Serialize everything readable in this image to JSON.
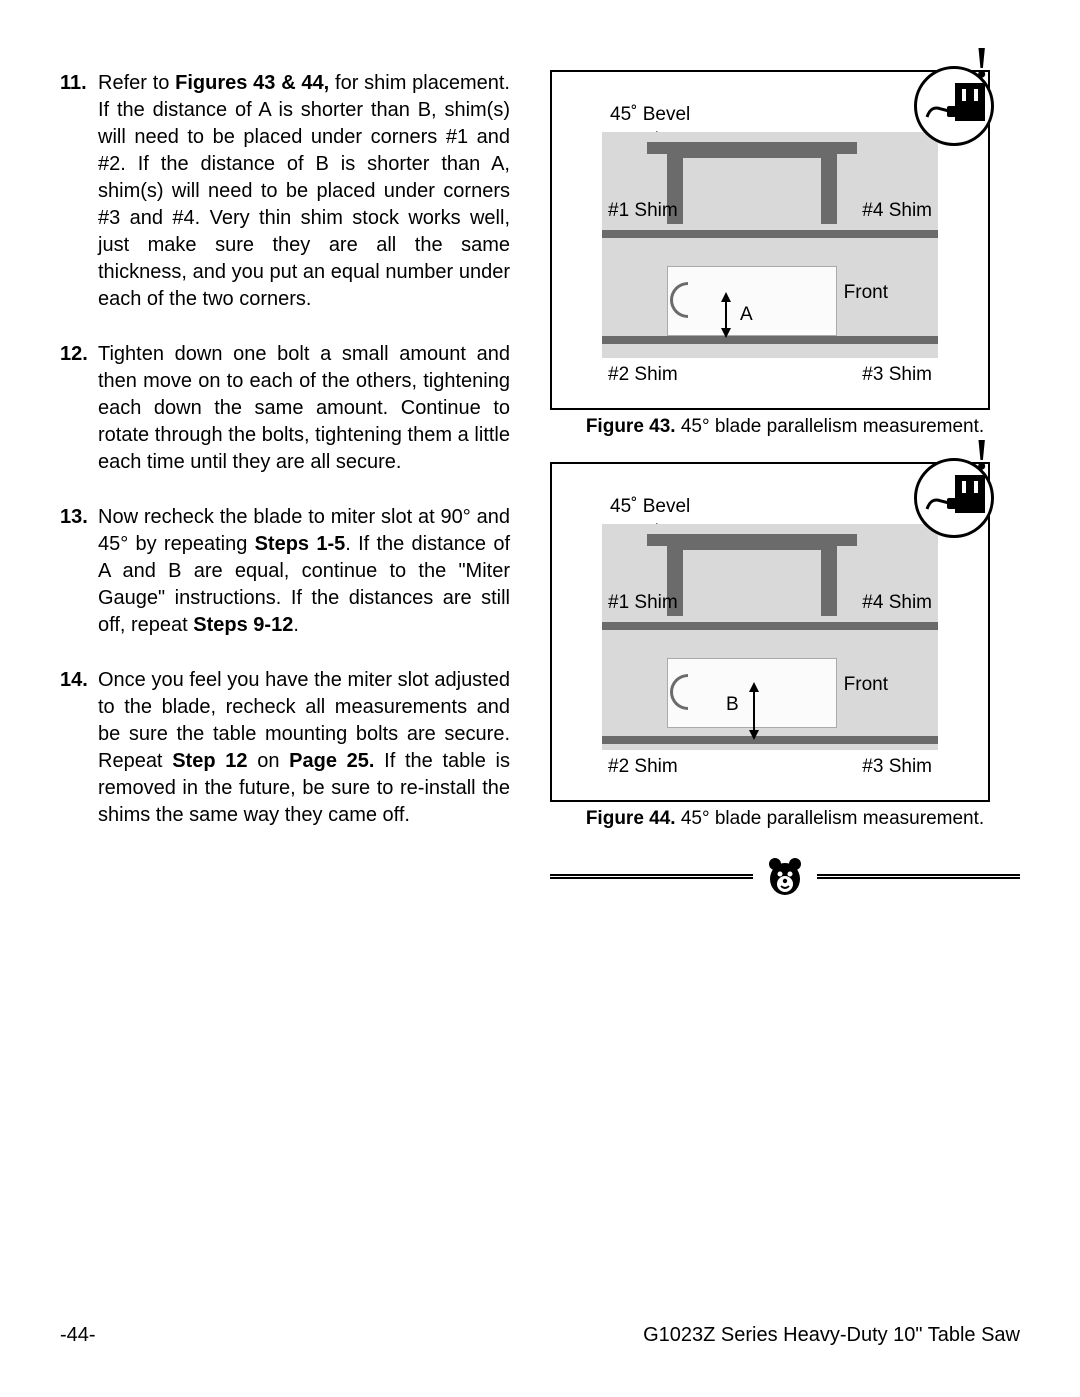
{
  "steps": [
    {
      "num": "11.",
      "parts": [
        {
          "t": "Refer to "
        },
        {
          "t": "Figures 43 & 44,",
          "b": true
        },
        {
          "t": " for shim placement. If the distance of A is shorter than B, shim(s) will need to be placed under corners #1 and #2. If the distance of B is shorter than A, shim(s) will need to be placed under corners #3 and #4. Very thin shim stock works well, just make sure they are all the same thickness, and you put an equal number under each of the two corners."
        }
      ]
    },
    {
      "num": "12.",
      "parts": [
        {
          "t": "Tighten down one bolt a small amount and then move on to each of the others, tightening each down the same amount. Continue to rotate through the bolts, tightening them a little each time until they are all secure."
        }
      ]
    },
    {
      "num": "13.",
      "parts": [
        {
          "t": "Now recheck the blade to miter slot at 90° and 45° by repeating "
        },
        {
          "t": "Steps 1-5",
          "b": true
        },
        {
          "t": ". If the distance of A and B are equal, continue to the \"Miter Gauge\" instructions. If the distances are still off, repeat "
        },
        {
          "t": "Steps 9-12",
          "b": true
        },
        {
          "t": "."
        }
      ]
    },
    {
      "num": "14.",
      "parts": [
        {
          "t": "Once you feel you have the miter slot adjusted to the blade, recheck all measurements and be sure the table mounting bolts are secure. Repeat "
        },
        {
          "t": "Step 12",
          "b": true
        },
        {
          "t": " on "
        },
        {
          "t": "Page 25.",
          "b": true
        },
        {
          "t": " If the table is removed in the future, be sure to re-install the shims the same way they came off."
        }
      ]
    }
  ],
  "fig43": {
    "bevel": "45˚ Bevel",
    "s1": "#1 Shim",
    "s2": "#2 Shim",
    "s3": "#3 Shim",
    "s4": "#4 Shim",
    "front": "Front",
    "meas": "A",
    "captionBold": "Figure 43.",
    "captionRest": " 45° blade parallelism measurement."
  },
  "fig44": {
    "bevel": "45˚ Bevel",
    "s1": "#1 Shim",
    "s2": "#2 Shim",
    "s3": "#3 Shim",
    "s4": "#4 Shim",
    "front": "Front",
    "meas": "B",
    "captionBold": "Figure 44.",
    "captionRest": " 45° blade parallelism measurement."
  },
  "footer": {
    "left": "-44-",
    "right": "G1023Z Series Heavy-Duty 10\" Table Saw"
  },
  "colors": {
    "gray": "#6b6b6b",
    "lightgray": "#d9d9d9"
  }
}
